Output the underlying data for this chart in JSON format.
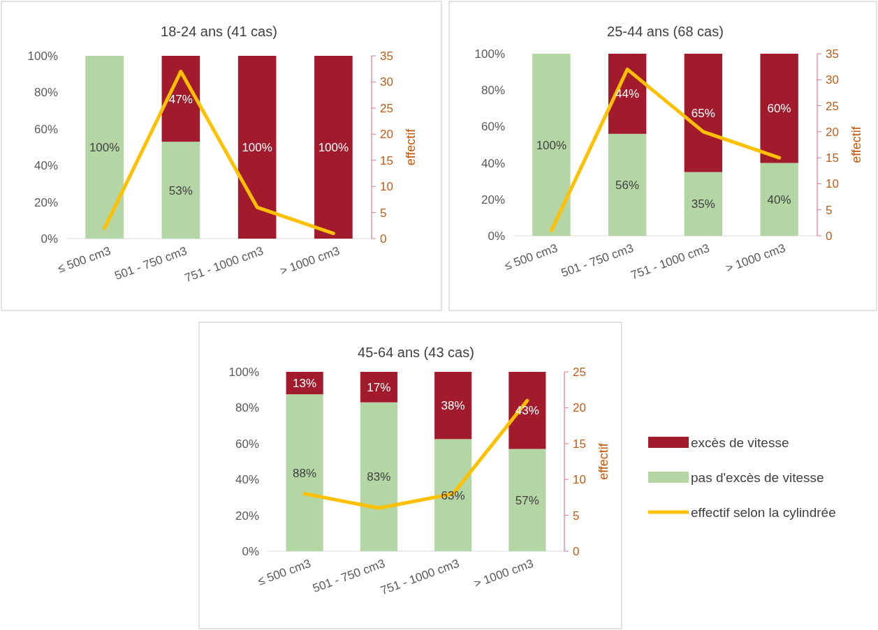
{
  "chart_data": [
    {
      "type": "bar",
      "stacked": true,
      "title": "18-24 ans (41 cas)",
      "categories": [
        "≤ 500 cm3",
        "501 - 750 cm3",
        "751 - 1000 cm3",
        "> 1000 cm3"
      ],
      "ylim": [
        0,
        100
      ],
      "yticks": [
        {
          "value": 0,
          "label": "0%"
        },
        {
          "value": 20,
          "label": "20%"
        },
        {
          "value": 40,
          "label": "40%"
        },
        {
          "value": 60,
          "label": "60%"
        },
        {
          "value": 80,
          "label": "80%"
        },
        {
          "value": 100,
          "label": "100%"
        }
      ],
      "y2lim": [
        0,
        35
      ],
      "y2ticks": [
        0,
        5,
        10,
        15,
        20,
        25,
        30,
        35
      ],
      "y2label": "effectif",
      "series": [
        {
          "color": "#b3d6a4",
          "values": [
            100,
            53,
            0,
            0
          ],
          "value_labels": [
            "100%",
            "53%",
            null,
            null
          ]
        },
        {
          "color": "#a21b2c",
          "values": [
            0,
            47,
            100,
            100
          ],
          "value_labels": [
            null,
            "47%",
            "100%",
            "100%"
          ]
        },
        {
          "type": "line",
          "axis": "y2",
          "color": "#ffc000",
          "values": [
            2,
            32,
            6,
            1
          ]
        }
      ]
    },
    {
      "type": "bar",
      "stacked": true,
      "title": "25-44 ans (68 cas)",
      "categories": [
        "≤ 500 cm3",
        "501 - 750 cm3",
        "751 - 1000 cm3",
        "> 1000 cm3"
      ],
      "ylim": [
        0,
        100
      ],
      "yticks": [
        {
          "value": 0,
          "label": "0%"
        },
        {
          "value": 20,
          "label": "20%"
        },
        {
          "value": 40,
          "label": "40%"
        },
        {
          "value": 60,
          "label": "60%"
        },
        {
          "value": 80,
          "label": "80%"
        },
        {
          "value": 100,
          "label": "100%"
        }
      ],
      "y2lim": [
        0,
        35
      ],
      "y2ticks": [
        0,
        5,
        10,
        15,
        20,
        25,
        30,
        35
      ],
      "y2label": "effectif",
      "series": [
        {
          "color": "#b3d6a4",
          "values": [
            100,
            56,
            35,
            40
          ],
          "value_labels": [
            "100%",
            "56%",
            "35%",
            "40%"
          ]
        },
        {
          "color": "#a21b2c",
          "values": [
            0,
            44,
            65,
            60
          ],
          "value_labels": [
            null,
            "44%",
            "65%",
            "60%"
          ]
        },
        {
          "type": "line",
          "axis": "y2",
          "color": "#ffc000",
          "values": [
            1,
            32,
            20,
            15
          ]
        }
      ]
    },
    {
      "type": "bar",
      "stacked": true,
      "title": "45-64 ans (43 cas)",
      "categories": [
        "≤ 500 cm3",
        "501 - 750 cm3",
        "751 - 1000 cm3",
        "> 1000 cm3"
      ],
      "ylim": [
        0,
        100
      ],
      "yticks": [
        {
          "value": 0,
          "label": "0%"
        },
        {
          "value": 20,
          "label": "20%"
        },
        {
          "value": 40,
          "label": "40%"
        },
        {
          "value": 60,
          "label": "60%"
        },
        {
          "value": 80,
          "label": "80%"
        },
        {
          "value": 100,
          "label": "100%"
        }
      ],
      "y2lim": [
        0,
        25
      ],
      "y2ticks": [
        0,
        5,
        10,
        15,
        20,
        25
      ],
      "y2label": "effectif",
      "legend": "right",
      "series": [
        {
          "name": "pas d'excès de vitesse",
          "color": "#b3d6a4",
          "values": [
            87.5,
            83,
            62.5,
            57
          ],
          "value_labels": [
            "88%",
            "83%",
            "63%",
            "57%"
          ]
        },
        {
          "name": "excès de vitesse",
          "color": "#a21b2c",
          "values": [
            12.5,
            17,
            37.5,
            43
          ],
          "value_labels": [
            "13%",
            "17%",
            "38%",
            "43%"
          ]
        },
        {
          "type": "line",
          "axis": "y2",
          "name": "effectif selon la cylindrée",
          "color": "#ffc000",
          "values": [
            8,
            6,
            8,
            21
          ]
        }
      ]
    }
  ]
}
